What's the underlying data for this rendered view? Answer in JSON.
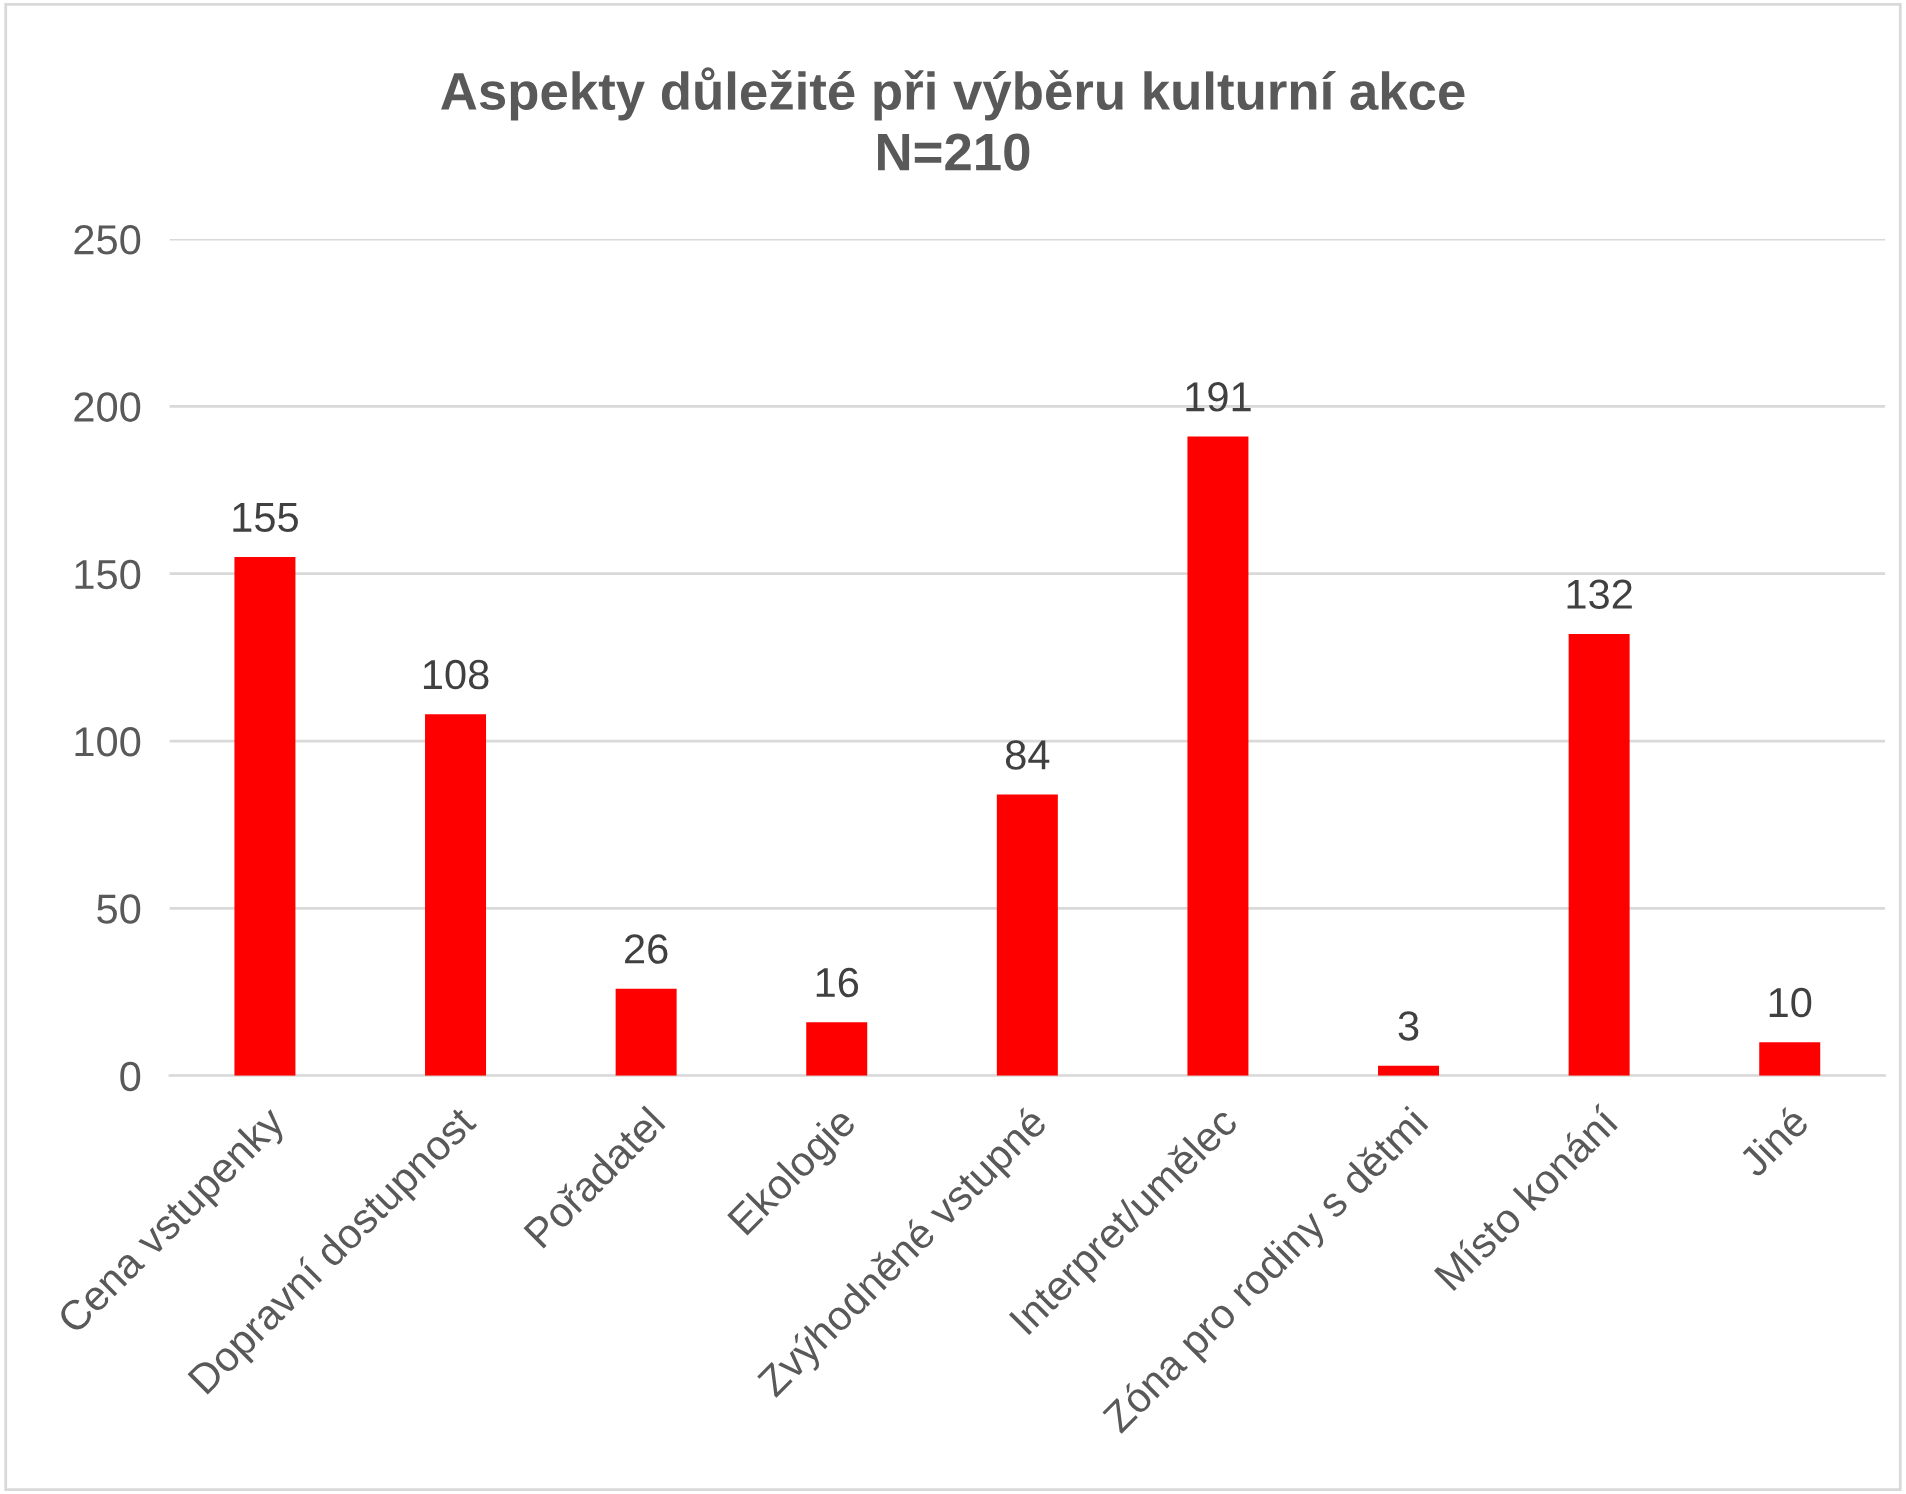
{
  "chart_data": {
    "type": "bar",
    "title": "Aspekty důležité při výběru kulturní akce\nN=210",
    "categories": [
      "Cena vstupenky",
      "Dopravní dostupnost",
      "Pořadatel",
      "Ekologie",
      "Zvýhodněné vstupné",
      "Interpret/umělec",
      "Zóna pro rodiny s dětmi",
      "Místo konání",
      "Jiné"
    ],
    "values": [
      155,
      108,
      26,
      16,
      84,
      191,
      3,
      132,
      10
    ],
    "color": "#ff0000",
    "ylim": [
      0,
      250
    ],
    "yticks": [
      0,
      50,
      100,
      150,
      200,
      250
    ],
    "grid": "y",
    "data_labels": true,
    "legend": false
  }
}
